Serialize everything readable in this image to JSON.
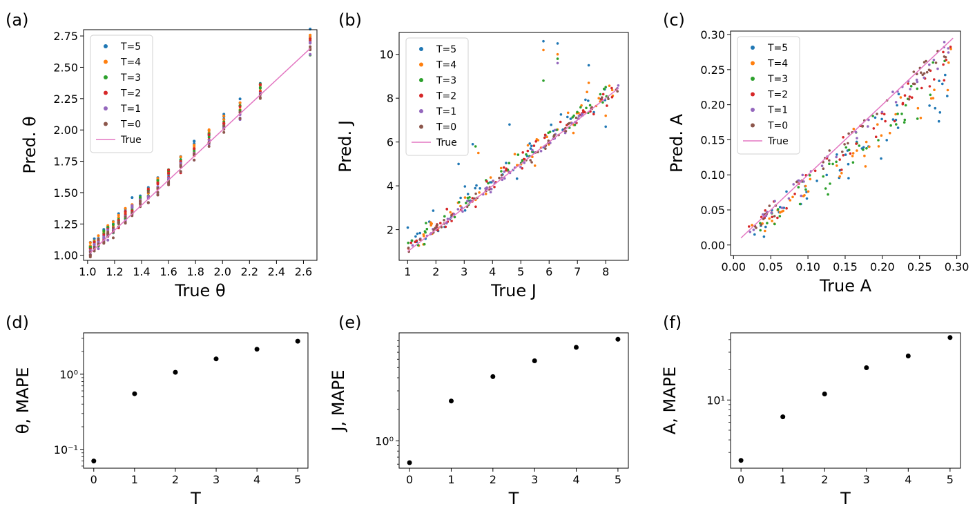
{
  "panel_labels": [
    "(a)",
    "(b)",
    "(c)",
    "(d)",
    "(e)",
    "(f)"
  ],
  "colors": {
    "T=5": "#1f77b4",
    "T=4": "#ff7f0e",
    "T=3": "#2ca02c",
    "T=2": "#d62728",
    "T=1": "#9467bd",
    "T=0": "#8c564b",
    "True": "#e377c2",
    "mape_marker": "#000000",
    "axis": "#000000"
  },
  "chart_data": [
    {
      "id": "a",
      "type": "scatter",
      "xlabel": "True θ",
      "ylabel": "Pred. θ",
      "xlim": [
        0.97,
        2.7
      ],
      "ylim": [
        0.96,
        2.8
      ],
      "xticks": [
        1.0,
        1.2,
        1.4,
        1.6,
        1.8,
        2.0,
        2.2,
        2.4,
        2.6
      ],
      "xticklabels": [
        "1.0",
        "1.2",
        "1.4",
        "1.6",
        "1.8",
        "2.0",
        "2.2",
        "2.4",
        "2.6"
      ],
      "yticks": [
        1.0,
        1.25,
        1.5,
        1.75,
        2.0,
        2.25,
        2.5,
        2.75
      ],
      "yticklabels": [
        "1.00",
        "1.25",
        "1.50",
        "1.75",
        "2.00",
        "2.25",
        "2.50",
        "2.75"
      ],
      "legend": [
        "T=5",
        "T=4",
        "T=3",
        "T=2",
        "T=1",
        "T=0",
        "True"
      ],
      "legend_position": "upper-left",
      "true_x": [
        1.02,
        2.65
      ],
      "x_values": [
        1.02,
        1.05,
        1.08,
        1.12,
        1.15,
        1.19,
        1.23,
        1.28,
        1.33,
        1.39,
        1.45,
        1.52,
        1.6,
        1.69,
        1.79,
        1.9,
        2.01,
        2.13,
        2.28,
        2.65
      ],
      "excess_at_T5": 0.06,
      "spread": 0.018
    },
    {
      "id": "b",
      "type": "scatter",
      "xlabel": "True J",
      "ylabel": "Pred. J",
      "xlim": [
        0.7,
        8.8
      ],
      "ylim": [
        0.6,
        11.0
      ],
      "xticks": [
        1,
        2,
        3,
        4,
        5,
        6,
        7,
        8
      ],
      "xticklabels": [
        "1",
        "2",
        "3",
        "4",
        "5",
        "6",
        "7",
        "8"
      ],
      "yticks": [
        2,
        4,
        6,
        8,
        10
      ],
      "yticklabels": [
        "2",
        "4",
        "6",
        "8",
        "10"
      ],
      "legend": [
        "T=5",
        "T=4",
        "T=3",
        "T=2",
        "T=1",
        "T=0",
        "True"
      ],
      "legend_position": "upper-left",
      "true_x": [
        1.0,
        8.45
      ],
      "x_range": [
        1.0,
        8.45
      ],
      "n_points": 300,
      "spread": 0.22,
      "outliers": [
        {
          "x": 5.8,
          "y": 10.6,
          "series": "T=5"
        },
        {
          "x": 6.3,
          "y": 10.5,
          "series": "T=5"
        },
        {
          "x": 5.8,
          "y": 10.2,
          "series": "T=4"
        },
        {
          "x": 6.3,
          "y": 10.0,
          "series": "T=4"
        },
        {
          "x": 6.3,
          "y": 9.8,
          "series": "T=3"
        },
        {
          "x": 6.3,
          "y": 9.6,
          "series": "T=1"
        },
        {
          "x": 5.8,
          "y": 8.8,
          "series": "T=3"
        },
        {
          "x": 7.4,
          "y": 9.5,
          "series": "T=5"
        },
        {
          "x": 3.3,
          "y": 5.9,
          "series": "T=5"
        },
        {
          "x": 3.4,
          "y": 5.8,
          "series": "T=3"
        },
        {
          "x": 4.6,
          "y": 6.8,
          "series": "T=5"
        },
        {
          "x": 3.5,
          "y": 5.5,
          "series": "T=4"
        },
        {
          "x": 2.8,
          "y": 5.0,
          "series": "T=5"
        },
        {
          "x": 8.0,
          "y": 6.7,
          "series": "T=5"
        },
        {
          "x": 8.0,
          "y": 7.2,
          "series": "T=4"
        },
        {
          "x": 7.4,
          "y": 8.7,
          "series": "T=4"
        }
      ]
    },
    {
      "id": "c",
      "type": "scatter",
      "xlabel": "True A",
      "ylabel": "Pred. A",
      "xlim": [
        -0.004,
        0.305
      ],
      "ylim": [
        -0.015,
        0.305
      ],
      "xticks": [
        0.0,
        0.05,
        0.1,
        0.15,
        0.2,
        0.25,
        0.3
      ],
      "xticklabels": [
        "0.00",
        "0.05",
        "0.10",
        "0.15",
        "0.20",
        "0.25",
        "0.30"
      ],
      "yticks": [
        0.0,
        0.05,
        0.1,
        0.15,
        0.2,
        0.25,
        0.3
      ],
      "yticklabels": [
        "0.00",
        "0.05",
        "0.10",
        "0.15",
        "0.20",
        "0.25",
        "0.30"
      ],
      "legend": [
        "T=5",
        "T=4",
        "T=3",
        "T=2",
        "T=1",
        "T=0",
        "True"
      ],
      "legend_position": "upper-left",
      "true_x": [
        0.01,
        0.295
      ],
      "x_range": [
        0.02,
        0.295
      ],
      "n_points": 260,
      "underestimate_by_T": [
        0.18,
        0.15,
        0.12,
        0.08,
        0.04,
        0.015
      ]
    },
    {
      "id": "d",
      "type": "scatter",
      "yscale": "log",
      "xlabel": "T",
      "ylabel": "θ, MAPE",
      "x": [
        0,
        1,
        2,
        3,
        4,
        5
      ],
      "y": [
        0.07,
        0.55,
        1.06,
        1.6,
        2.15,
        2.75
      ],
      "xlim": [
        -0.25,
        5.25
      ],
      "ylim_log10": [
        -1.25,
        0.55
      ],
      "xticks": [
        0,
        1,
        2,
        3,
        4,
        5
      ],
      "xticklabels": [
        "0",
        "1",
        "2",
        "3",
        "4",
        "5"
      ],
      "yticks": [
        0.1,
        1.0
      ],
      "yticklabels": [
        "10⁻¹",
        "10⁰"
      ]
    },
    {
      "id": "e",
      "type": "scatter",
      "yscale": "log",
      "xlabel": "T",
      "ylabel": "J, MAPE",
      "x": [
        0,
        1,
        2,
        3,
        4,
        5
      ],
      "y": [
        0.62,
        2.4,
        4.1,
        5.8,
        7.8,
        9.3
      ],
      "xlim": [
        -0.25,
        5.25
      ],
      "ylim_log10": [
        -0.26,
        1.03
      ],
      "xticks": [
        0,
        1,
        2,
        3,
        4,
        5
      ],
      "xticklabels": [
        "0",
        "1",
        "2",
        "3",
        "4",
        "5"
      ],
      "yticks": [
        1.0
      ],
      "yticklabels": [
        "10⁰"
      ]
    },
    {
      "id": "f",
      "type": "scatter",
      "yscale": "log",
      "xlabel": "T",
      "ylabel": "A, MAPE",
      "x": [
        0,
        1,
        2,
        3,
        4,
        5
      ],
      "y": [
        2.5,
        6.8,
        11.5,
        21.0,
        27.5,
        42.0
      ],
      "xlim": [
        -0.25,
        5.25
      ],
      "ylim_log10": [
        0.32,
        1.67
      ],
      "xticks": [
        0,
        1,
        2,
        3,
        4,
        5
      ],
      "xticklabels": [
        "0",
        "1",
        "2",
        "3",
        "4",
        "5"
      ],
      "yticks": [
        10.0
      ],
      "yticklabels": [
        "10¹"
      ]
    }
  ]
}
